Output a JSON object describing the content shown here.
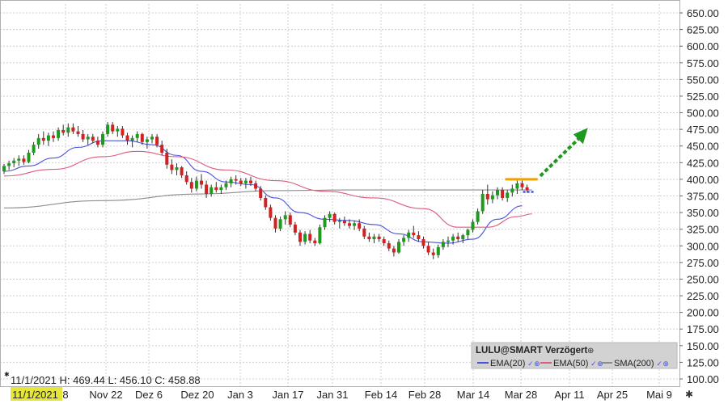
{
  "chart_data": {
    "type": "candlestick",
    "y_ticks": [
      "650.00",
      "625.00",
      "600.00",
      "575.00",
      "550.00",
      "525.00",
      "500.00",
      "475.00",
      "450.00",
      "425.00",
      "400.00",
      "375.00",
      "350.00",
      "325.00",
      "300.00",
      "275.00",
      "250.00",
      "225.00",
      "200.00",
      "175.00",
      "150.00",
      "125.00",
      "100.00"
    ],
    "ylim": [
      100,
      650
    ],
    "x_ticks": [
      "8",
      "Nov 22",
      "Dez 6",
      "Dez 20",
      "Jan 3",
      "Jan 17",
      "Jan 31",
      "Feb 14",
      "Feb 28",
      "Mar 14",
      "Mar 28",
      "Apr 11",
      "Apr 25",
      "Mai 9"
    ],
    "cursor_date": "11/1/2021",
    "ohlc_readout": "11/1/2021  H: 469.44  L: 456.10  C: 458.88",
    "grid": true,
    "candles": [
      [
        412,
        423,
        408,
        420
      ],
      [
        420,
        428,
        414,
        424
      ],
      [
        424,
        432,
        418,
        428
      ],
      [
        428,
        436,
        420,
        431
      ],
      [
        431,
        436,
        422,
        426
      ],
      [
        426,
        444,
        424,
        440
      ],
      [
        440,
        456,
        436,
        452
      ],
      [
        452,
        468,
        446,
        462
      ],
      [
        462,
        472,
        452,
        458
      ],
      [
        458,
        470,
        450,
        466
      ],
      [
        466,
        472,
        456,
        462
      ],
      [
        462,
        478,
        458,
        474
      ],
      [
        474,
        482,
        466,
        470
      ],
      [
        470,
        484,
        464,
        478
      ],
      [
        478,
        484,
        468,
        472
      ],
      [
        472,
        480,
        464,
        468
      ],
      [
        468,
        474,
        456,
        460
      ],
      [
        460,
        468,
        452,
        464
      ],
      [
        464,
        468,
        454,
        458
      ],
      [
        458,
        464,
        448,
        452
      ],
      [
        452,
        472,
        448,
        468
      ],
      [
        468,
        486,
        464,
        482
      ],
      [
        482,
        486,
        468,
        472
      ],
      [
        472,
        480,
        464,
        476
      ],
      [
        476,
        480,
        462,
        466
      ],
      [
        466,
        470,
        452,
        458
      ],
      [
        458,
        466,
        448,
        462
      ],
      [
        462,
        472,
        456,
        468
      ],
      [
        468,
        470,
        452,
        456
      ],
      [
        456,
        464,
        446,
        460
      ],
      [
        460,
        468,
        454,
        464
      ],
      [
        464,
        468,
        448,
        452
      ],
      [
        452,
        458,
        436,
        440
      ],
      [
        440,
        446,
        416,
        422
      ],
      [
        422,
        430,
        408,
        414
      ],
      [
        414,
        424,
        406,
        418
      ],
      [
        418,
        420,
        402,
        406
      ],
      [
        406,
        412,
        392,
        396
      ],
      [
        396,
        402,
        380,
        386
      ],
      [
        386,
        404,
        382,
        398
      ],
      [
        398,
        408,
        386,
        392
      ],
      [
        392,
        398,
        372,
        378
      ],
      [
        378,
        392,
        374,
        388
      ],
      [
        388,
        396,
        380,
        384
      ],
      [
        384,
        392,
        378,
        388
      ],
      [
        388,
        398,
        384,
        394
      ],
      [
        394,
        404,
        388,
        400
      ],
      [
        400,
        406,
        392,
        398
      ],
      [
        398,
        402,
        390,
        394
      ],
      [
        394,
        402,
        386,
        398
      ],
      [
        398,
        404,
        390,
        394
      ],
      [
        394,
        398,
        382,
        386
      ],
      [
        386,
        390,
        368,
        372
      ],
      [
        372,
        376,
        354,
        358
      ],
      [
        358,
        362,
        338,
        342
      ],
      [
        342,
        346,
        320,
        326
      ],
      [
        326,
        344,
        322,
        340
      ],
      [
        340,
        352,
        332,
        346
      ],
      [
        346,
        350,
        328,
        332
      ],
      [
        332,
        336,
        316,
        320
      ],
      [
        320,
        324,
        300,
        306
      ],
      [
        306,
        322,
        302,
        318
      ],
      [
        318,
        324,
        304,
        308
      ],
      [
        308,
        312,
        300,
        304
      ],
      [
        304,
        332,
        302,
        328
      ],
      [
        328,
        346,
        324,
        342
      ],
      [
        342,
        352,
        336,
        348
      ],
      [
        348,
        350,
        332,
        336
      ],
      [
        336,
        342,
        326,
        338
      ],
      [
        338,
        344,
        330,
        334
      ],
      [
        334,
        340,
        326,
        330
      ],
      [
        330,
        338,
        324,
        334
      ],
      [
        334,
        340,
        322,
        326
      ],
      [
        326,
        330,
        310,
        314
      ],
      [
        314,
        320,
        306,
        310
      ],
      [
        310,
        318,
        304,
        314
      ],
      [
        314,
        318,
        306,
        310
      ],
      [
        310,
        314,
        300,
        304
      ],
      [
        304,
        308,
        292,
        296
      ],
      [
        296,
        300,
        284,
        290
      ],
      [
        290,
        310,
        288,
        306
      ],
      [
        306,
        316,
        300,
        312
      ],
      [
        312,
        324,
        306,
        320
      ],
      [
        320,
        330,
        312,
        316
      ],
      [
        316,
        322,
        306,
        310
      ],
      [
        310,
        314,
        296,
        300
      ],
      [
        300,
        306,
        286,
        290
      ],
      [
        290,
        296,
        280,
        286
      ],
      [
        286,
        302,
        282,
        298
      ],
      [
        298,
        310,
        294,
        306
      ],
      [
        306,
        314,
        298,
        308
      ],
      [
        308,
        318,
        302,
        314
      ],
      [
        314,
        320,
        306,
        310
      ],
      [
        310,
        318,
        304,
        316
      ],
      [
        316,
        326,
        310,
        324
      ],
      [
        324,
        340,
        320,
        336
      ],
      [
        336,
        356,
        332,
        352
      ],
      [
        352,
        384,
        348,
        378
      ],
      [
        378,
        392,
        362,
        370
      ],
      [
        370,
        382,
        364,
        376
      ],
      [
        376,
        388,
        370,
        384
      ],
      [
        384,
        388,
        368,
        372
      ],
      [
        372,
        384,
        366,
        380
      ],
      [
        380,
        392,
        374,
        386
      ],
      [
        386,
        398,
        378,
        394
      ],
      [
        394,
        398,
        384,
        388
      ],
      [
        388,
        392,
        380,
        384
      ]
    ],
    "series": [
      {
        "name": "EMA(20)",
        "color": "#4a52d8",
        "values": [
          [
            0,
            412
          ],
          [
            5,
            420
          ],
          [
            10,
            432
          ],
          [
            15,
            448
          ],
          [
            20,
            458
          ],
          [
            25,
            458
          ],
          [
            30,
            452
          ],
          [
            35,
            436
          ],
          [
            40,
            412
          ],
          [
            45,
            396
          ],
          [
            50,
            392
          ],
          [
            55,
            372
          ],
          [
            60,
            350
          ],
          [
            65,
            340
          ],
          [
            70,
            338
          ],
          [
            75,
            332
          ],
          [
            80,
            318
          ],
          [
            85,
            306
          ],
          [
            90,
            304
          ],
          [
            95,
            310
          ],
          [
            100,
            340
          ],
          [
            105,
            360
          ]
        ]
      },
      {
        "name": "EMA(50)",
        "color": "#e05a7a",
        "values": [
          [
            0,
            405
          ],
          [
            10,
            415
          ],
          [
            20,
            434
          ],
          [
            27,
            442
          ],
          [
            35,
            434
          ],
          [
            45,
            414
          ],
          [
            55,
            398
          ],
          [
            65,
            382
          ],
          [
            75,
            372
          ],
          [
            85,
            356
          ],
          [
            92,
            328
          ],
          [
            98,
            328
          ],
          [
            104,
            344
          ],
          [
            107,
            348
          ]
        ]
      },
      {
        "name": "SMA(200)",
        "color": "#8c8c8c",
        "values": [
          [
            0,
            357
          ],
          [
            20,
            368
          ],
          [
            40,
            378
          ],
          [
            55,
            383
          ],
          [
            70,
            384
          ],
          [
            90,
            384
          ],
          [
            107,
            384
          ]
        ]
      }
    ],
    "annotations": {
      "resistance_level": 400,
      "support_level": 381,
      "arrow_from": [
        109,
        405
      ],
      "arrow_to": [
        118,
        470
      ]
    },
    "legend": {
      "title": "LULU@SMART Verzögert",
      "items": [
        {
          "label": "EMA(20)",
          "color": "#4a52d8"
        },
        {
          "label": "EMA(50)",
          "color": "#e05a7a"
        },
        {
          "label": "SMA(200)",
          "color": "#8c8c8c"
        }
      ]
    },
    "colors": {
      "up": "#1e9a1e",
      "down": "#d42020",
      "grid": "#cfcfcf",
      "highlight": "#e6e639",
      "resistance": "#f0a000",
      "support": "#4455dd",
      "arrow": "#1e9a1e"
    }
  }
}
